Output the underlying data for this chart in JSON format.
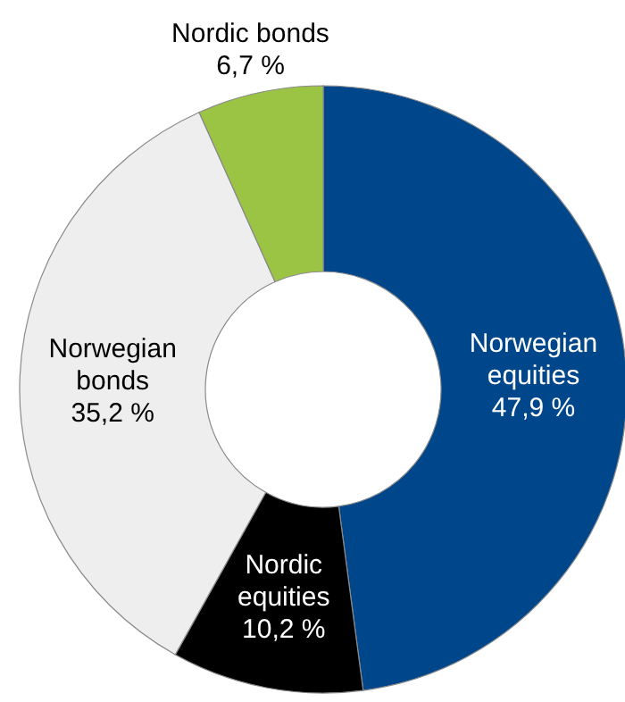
{
  "chart_data": {
    "type": "donut",
    "categories": [
      "Norwegian equities",
      "Nordic equities",
      "Norwegian bonds",
      "Nordic bonds"
    ],
    "values": [
      47.9,
      10.2,
      35.2,
      6.7
    ],
    "colors": [
      "#00468b",
      "#000000",
      "#eeeeee",
      "#9bc344"
    ],
    "value_labels": [
      "47,9 %",
      "10,2 %",
      "35,2 %",
      "6,7 %"
    ]
  }
}
